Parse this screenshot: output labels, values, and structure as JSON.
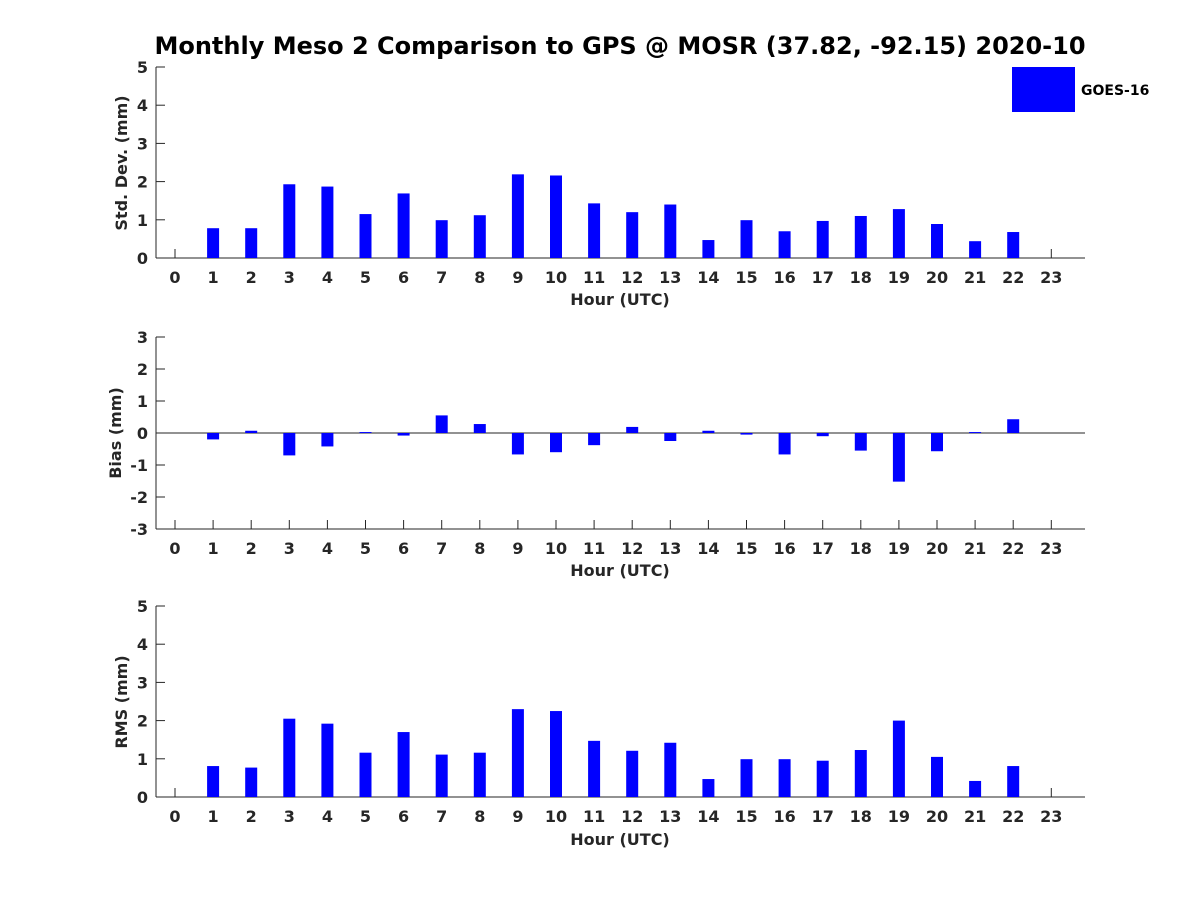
{
  "chart_data": {
    "title": "Monthly Meso 2 Comparison to GPS @ MOSR (37.82, -92.15) 2020-10",
    "legend": {
      "label": "GOES-16",
      "color": "#0000ff",
      "placement": "top-right"
    },
    "panels": [
      {
        "type": "bar",
        "name": "std-dev",
        "ylabel": "Std. Dev. (mm)",
        "xlabel": "Hour (UTC)",
        "ylim": [
          0,
          5
        ],
        "yticks": [
          0,
          1,
          2,
          3,
          4,
          5
        ],
        "categories": [
          0,
          1,
          2,
          3,
          4,
          5,
          6,
          7,
          8,
          9,
          10,
          11,
          12,
          13,
          14,
          15,
          16,
          17,
          18,
          19,
          20,
          21,
          22,
          23
        ],
        "values": [
          null,
          0.78,
          0.78,
          1.93,
          1.87,
          1.15,
          1.69,
          0.99,
          1.12,
          2.19,
          2.16,
          1.43,
          1.2,
          1.4,
          0.47,
          0.99,
          0.7,
          0.97,
          1.1,
          1.28,
          0.89,
          0.44,
          0.68,
          null
        ]
      },
      {
        "type": "bar",
        "name": "bias",
        "ylabel": "Bias (mm)",
        "xlabel": "Hour (UTC)",
        "ylim": [
          -3,
          3
        ],
        "yticks": [
          -3,
          -2,
          -1,
          0,
          1,
          2,
          3
        ],
        "categories": [
          0,
          1,
          2,
          3,
          4,
          5,
          6,
          7,
          8,
          9,
          10,
          11,
          12,
          13,
          14,
          15,
          16,
          17,
          18,
          19,
          20,
          21,
          22,
          23
        ],
        "values": [
          null,
          -0.2,
          0.07,
          -0.7,
          -0.42,
          0.03,
          -0.08,
          0.55,
          0.28,
          -0.67,
          -0.6,
          -0.38,
          0.19,
          -0.25,
          0.07,
          -0.05,
          -0.67,
          -0.1,
          -0.55,
          -1.52,
          -0.57,
          0.03,
          0.43,
          null
        ]
      },
      {
        "type": "bar",
        "name": "rms",
        "ylabel": "RMS (mm)",
        "xlabel": "Hour (UTC)",
        "ylim": [
          0,
          5
        ],
        "yticks": [
          0,
          1,
          2,
          3,
          4,
          5
        ],
        "categories": [
          0,
          1,
          2,
          3,
          4,
          5,
          6,
          7,
          8,
          9,
          10,
          11,
          12,
          13,
          14,
          15,
          16,
          17,
          18,
          19,
          20,
          21,
          22,
          23
        ],
        "values": [
          null,
          0.81,
          0.77,
          2.05,
          1.92,
          1.16,
          1.7,
          1.11,
          1.16,
          2.3,
          2.25,
          1.47,
          1.21,
          1.42,
          0.47,
          0.99,
          0.99,
          0.95,
          1.23,
          2.0,
          1.05,
          0.42,
          0.81,
          null
        ]
      }
    ]
  }
}
